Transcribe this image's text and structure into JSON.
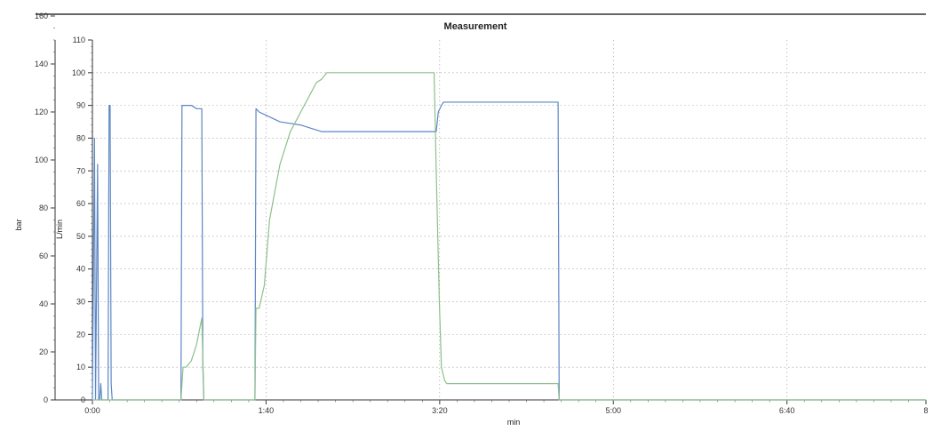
{
  "chart_data": {
    "type": "line",
    "title": "Measurement",
    "xlabel": "min",
    "xlim": [
      0,
      8
    ],
    "xticks": [
      {
        "value": 0,
        "label": "0:00"
      },
      {
        "value": 1.6667,
        "label": "1:40"
      },
      {
        "value": 3.3333,
        "label": "3:20"
      },
      {
        "value": 5.0,
        "label": "5:00"
      },
      {
        "value": 6.6667,
        "label": "6:40"
      },
      {
        "value": 8.0,
        "label": "8"
      }
    ],
    "y_left": {
      "label": "bar",
      "lim": [
        0,
        150
      ],
      "ticks": [
        0,
        20,
        40,
        60,
        80,
        100,
        120,
        140,
        160
      ]
    },
    "y_right": {
      "label": "L/min",
      "lim": [
        0,
        110
      ],
      "ticks": [
        0,
        10,
        20,
        30,
        40,
        50,
        60,
        70,
        80,
        90,
        100,
        110
      ]
    },
    "grid": true,
    "colors": {
      "blue": "#5b86c4",
      "green": "#8dc08c"
    },
    "series": [
      {
        "axis": "right",
        "color": "#5b86c4",
        "x": [
          0.0,
          0.02,
          0.03,
          0.05,
          0.06,
          0.07,
          0.08,
          0.09,
          0.1,
          0.12,
          0.15,
          0.16,
          0.17,
          0.18,
          0.19,
          0.2,
          0.22,
          0.25,
          0.3,
          0.35,
          0.4,
          0.5,
          0.6,
          0.7,
          0.8,
          0.85,
          0.86,
          0.87,
          0.95,
          1.0,
          1.05,
          1.06,
          1.07,
          1.1,
          1.2,
          1.3,
          1.4,
          1.5,
          1.55,
          1.56,
          1.57,
          1.6,
          1.8,
          2.0,
          2.1,
          2.2,
          2.4,
          2.6,
          2.8,
          3.0,
          3.1,
          3.2,
          3.3,
          3.31,
          3.32,
          3.35,
          3.37,
          3.5,
          3.8,
          4.0,
          4.2,
          4.4,
          4.47,
          4.48,
          4.6,
          4.8,
          5.0,
          6.0,
          7.0,
          7.5,
          8.0
        ],
        "y": [
          0,
          80,
          0,
          72,
          0,
          0,
          5,
          0,
          0,
          0,
          0,
          90,
          90,
          5,
          0,
          0,
          0,
          0,
          0,
          0,
          0,
          0,
          0,
          0,
          0,
          0,
          90,
          90,
          90,
          89,
          89,
          10,
          0,
          0,
          0,
          0,
          0,
          0,
          0,
          0,
          89,
          88,
          85,
          84,
          83,
          82,
          82,
          82,
          82,
          82,
          82,
          82,
          82,
          85,
          88,
          90,
          91,
          91,
          91,
          91,
          91,
          91,
          91,
          0,
          0,
          0,
          0,
          0,
          0,
          0,
          0
        ]
      },
      {
        "axis": "right",
        "color": "#8dc08c",
        "x": [
          0.0,
          0.05,
          0.1,
          0.5,
          0.85,
          0.87,
          0.9,
          0.95,
          1.0,
          1.05,
          1.07,
          1.2,
          1.5,
          1.56,
          1.57,
          1.6,
          1.65,
          1.7,
          1.8,
          1.9,
          2.0,
          2.1,
          2.15,
          2.2,
          2.25,
          2.3,
          2.35,
          2.4,
          2.6,
          2.8,
          3.0,
          3.2,
          3.28,
          3.3,
          3.33,
          3.35,
          3.38,
          3.4,
          3.5,
          4.0,
          4.4,
          4.47,
          4.48,
          5.0,
          8.0
        ],
        "y": [
          0,
          0,
          0,
          0,
          0,
          10,
          10,
          12,
          17,
          25,
          0,
          0,
          0,
          0,
          28,
          28,
          35,
          55,
          72,
          82,
          88,
          94,
          97,
          98,
          100,
          100,
          100,
          100,
          100,
          100,
          100,
          100,
          100,
          70,
          30,
          10,
          6,
          5,
          5,
          5,
          5,
          5,
          0,
          0,
          0
        ]
      }
    ]
  }
}
